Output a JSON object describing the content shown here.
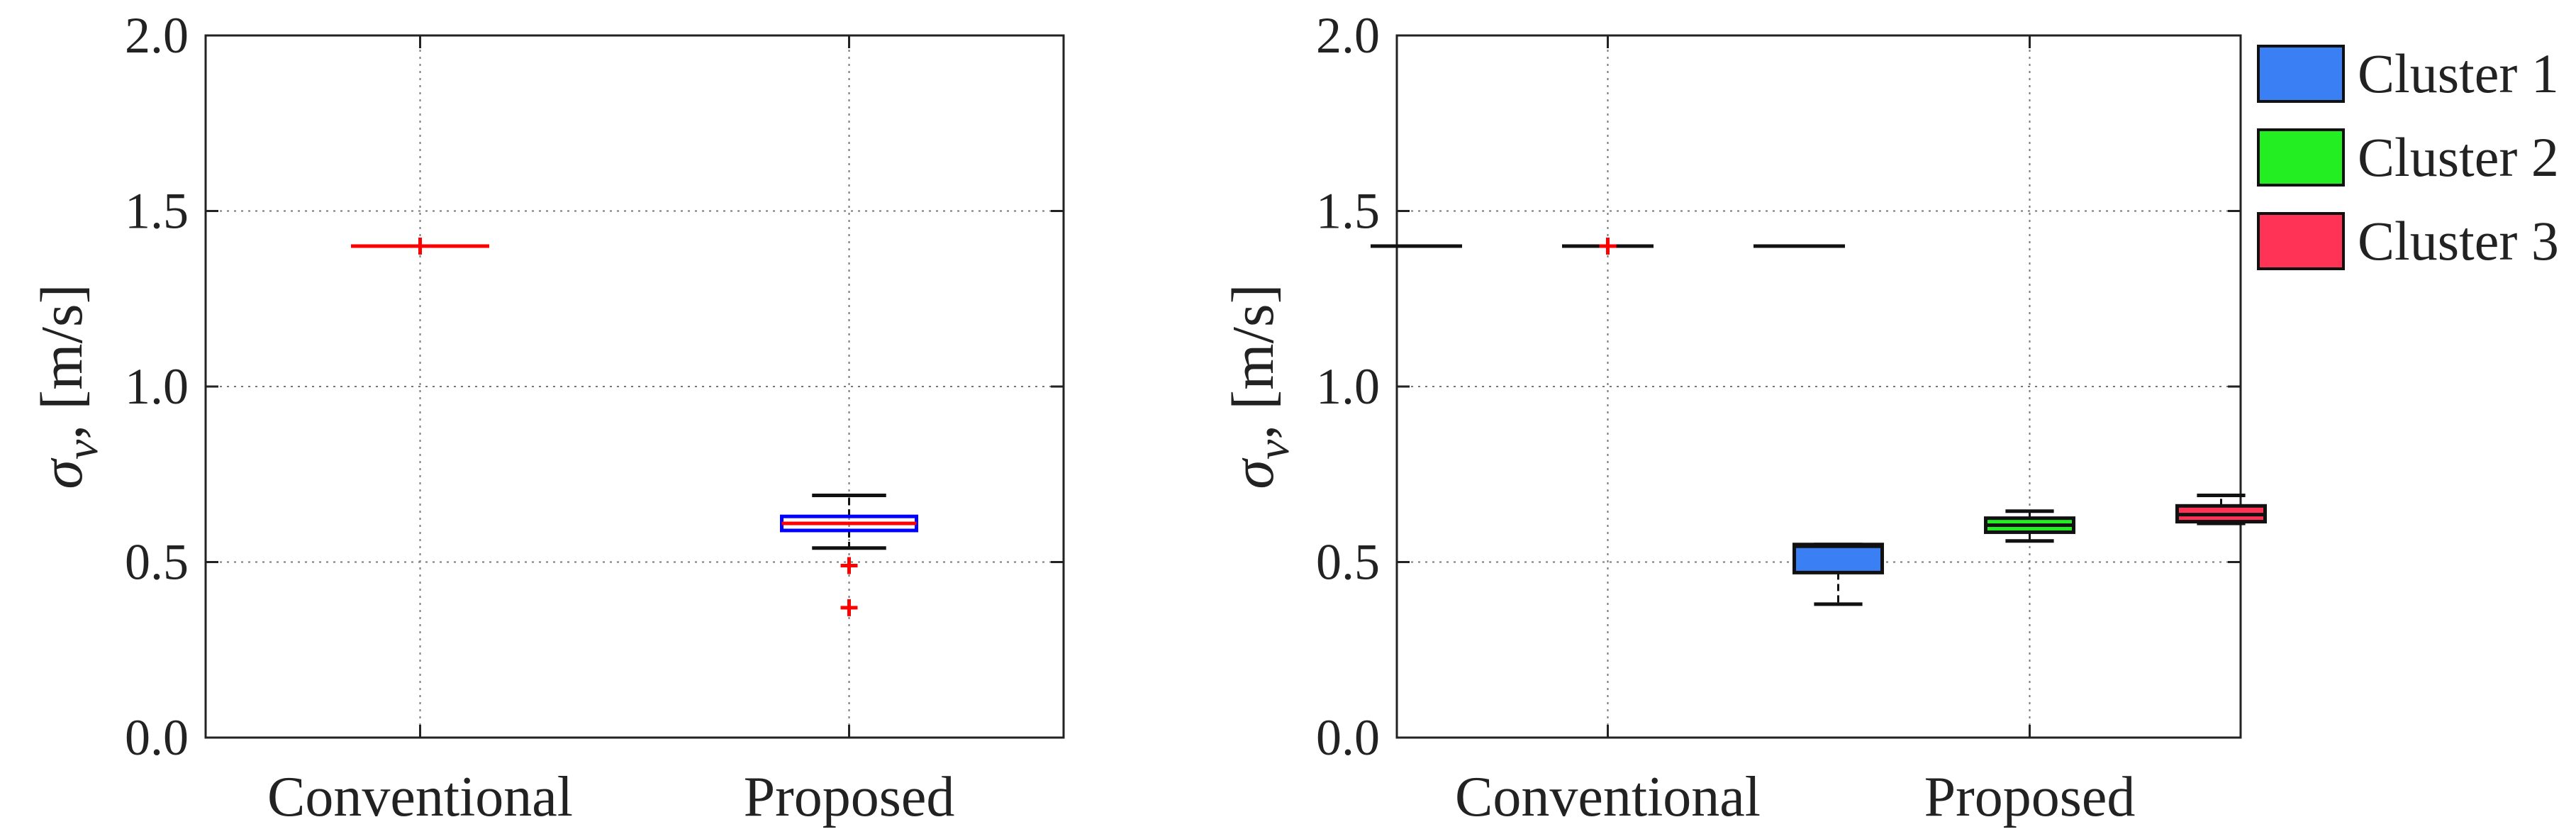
{
  "chart_data": [
    {
      "type": "box",
      "ylabel_symbol": "σ",
      "ylabel_subscript": "v",
      "ylabel_unit": ", [m/s]",
      "ylim": [
        0.0,
        2.0
      ],
      "yticks": [
        "0.0",
        "0.5",
        "1.0",
        "1.5",
        "2.0"
      ],
      "categories": [
        "Conventional",
        "Proposed"
      ],
      "grid": true,
      "boxes": [
        {
          "category": "Conventional",
          "min": 1.4,
          "q1": 1.4,
          "median": 1.4,
          "q3": 1.4,
          "max": 1.4,
          "outliers": [
            1.4
          ],
          "box_color": "#ff0000",
          "median_color": "#ff0000"
        },
        {
          "category": "Proposed",
          "min": 0.54,
          "q1": 0.59,
          "median": 0.61,
          "q3": 0.63,
          "max": 0.69,
          "outliers": [
            0.49,
            0.37
          ],
          "box_color": "#0000ff",
          "median_color": "#ff0000"
        }
      ]
    },
    {
      "type": "box",
      "ylabel_symbol": "σ",
      "ylabel_subscript": "v",
      "ylabel_unit": ", [m/s]",
      "ylim": [
        0.0,
        2.0
      ],
      "yticks": [
        "0.0",
        "0.5",
        "1.0",
        "1.5",
        "2.0"
      ],
      "categories": [
        "Conventional",
        "Proposed"
      ],
      "grid": true,
      "legend": {
        "placement": "outside-top-right",
        "entries": [
          "Cluster 1",
          "Cluster 2",
          "Cluster 3"
        ]
      },
      "series": [
        {
          "name": "Cluster 1",
          "color": "#3b7ff5",
          "values": [
            {
              "category": "Conventional",
              "min": 1.4,
              "q1": 1.4,
              "median": 1.4,
              "q3": 1.4,
              "max": 1.4,
              "outliers": []
            },
            {
              "category": "Proposed",
              "min": 0.38,
              "q1": 0.47,
              "median": 0.545,
              "q3": 0.55,
              "max": 0.55,
              "outliers": []
            }
          ]
        },
        {
          "name": "Cluster 2",
          "color": "#22ee22",
          "values": [
            {
              "category": "Conventional",
              "min": 1.4,
              "q1": 1.4,
              "median": 1.4,
              "q3": 1.4,
              "max": 1.4,
              "outliers": [
                1.4
              ]
            },
            {
              "category": "Proposed",
              "min": 0.56,
              "q1": 0.585,
              "median": 0.605,
              "q3": 0.625,
              "max": 0.645,
              "outliers": []
            }
          ]
        },
        {
          "name": "Cluster 3",
          "color": "#ff3355",
          "values": [
            {
              "category": "Conventional",
              "min": 1.4,
              "q1": 1.4,
              "median": 1.4,
              "q3": 1.4,
              "max": 1.4,
              "outliers": []
            },
            {
              "category": "Proposed",
              "min": 0.61,
              "q1": 0.615,
              "median": 0.635,
              "q3": 0.66,
              "max": 0.69,
              "outliers": []
            }
          ]
        }
      ]
    }
  ]
}
